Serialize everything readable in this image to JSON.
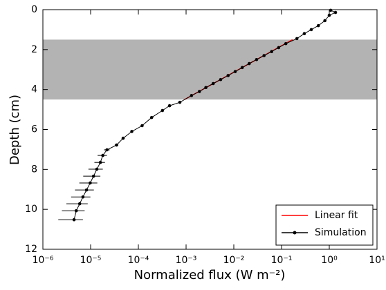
{
  "chart_data": {
    "type": "line",
    "xscale": "log",
    "yinvert": true,
    "xlabel": "Normalized flux (W m⁻²)",
    "ylabel": "Depth (cm)",
    "xlim": [
      1e-06,
      10
    ],
    "ylim": [
      0,
      12
    ],
    "xticks": [
      {
        "value": 1e-06,
        "label": "10⁻⁶"
      },
      {
        "value": 1e-05,
        "label": "10⁻⁵"
      },
      {
        "value": 0.0001,
        "label": "10⁻⁴"
      },
      {
        "value": 0.001,
        "label": "10⁻³"
      },
      {
        "value": 0.01,
        "label": "10⁻²"
      },
      {
        "value": 0.1,
        "label": "10⁻¹"
      },
      {
        "value": 1,
        "label": "10⁰"
      },
      {
        "value": 10,
        "label": "10¹"
      }
    ],
    "yticks": [
      0,
      2,
      4,
      6,
      8,
      10,
      12
    ],
    "shaded_band": [
      1.5,
      4.5
    ],
    "band_color": "#b3b3b3",
    "legend": "lower right",
    "series": [
      {
        "name": "Linear fit",
        "color": "#ff0000",
        "x": [
          0.17,
          0.00093
        ],
        "y": [
          1.5,
          4.5
        ]
      },
      {
        "name": "Simulation",
        "color": "#000000",
        "x": [
          1.07,
          1.35,
          1.0,
          0.81,
          0.59,
          0.42,
          0.3,
          0.21,
          0.123,
          0.087,
          0.062,
          0.043,
          0.03,
          0.021,
          0.015,
          0.0107,
          0.0076,
          0.0053,
          0.0037,
          0.0026,
          0.0019,
          0.0013,
          0.00074,
          0.00045,
          0.00032,
          0.00019,
          0.00012,
          7.3e-05,
          4.8e-05,
          3.5e-05,
          2.2e-05,
          1.8e-05,
          1.6e-05,
          1.35e-05,
          1.15e-05,
          9.8e-06,
          8.2e-06,
          6.9e-06,
          5.9e-06,
          5e-06,
          4.5e-06
        ],
        "y": [
          0.03,
          0.14,
          0.28,
          0.55,
          0.8,
          1.0,
          1.2,
          1.45,
          1.7,
          1.9,
          2.1,
          2.3,
          2.5,
          2.7,
          2.9,
          3.1,
          3.3,
          3.5,
          3.7,
          3.9,
          4.1,
          4.3,
          4.64,
          4.81,
          5.05,
          5.4,
          5.81,
          6.1,
          6.44,
          6.78,
          7.02,
          7.3,
          7.65,
          7.99,
          8.34,
          8.68,
          9.03,
          9.38,
          9.72,
          10.07,
          10.52
        ],
        "xerr": [
          0,
          0,
          0,
          0,
          0,
          0,
          0,
          0,
          0,
          0,
          0,
          0,
          0,
          0,
          0,
          0,
          0,
          0,
          0,
          0,
          0,
          0,
          0,
          0,
          0,
          0,
          0,
          2e-06,
          3e-06,
          3e-06,
          3e-06,
          4e-06,
          4e-06,
          4.5e-06,
          4.5e-06,
          4e-06,
          3.5e-06,
          3e-06,
          2.8e-06,
          2.5e-06,
          2.4e-06
        ]
      }
    ]
  }
}
